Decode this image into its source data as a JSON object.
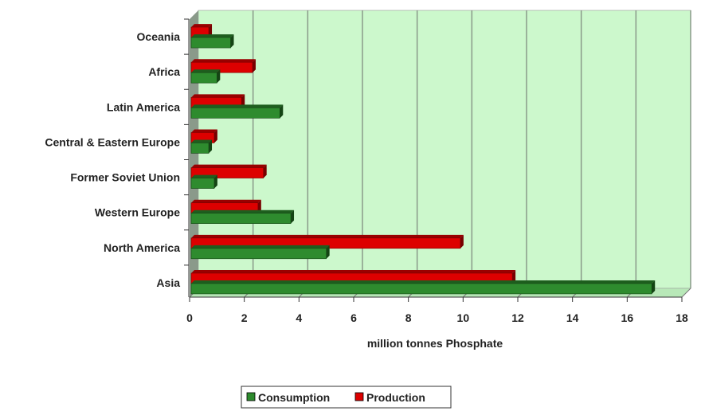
{
  "chart_data": {
    "type": "bar",
    "orientation": "horizontal",
    "title": "",
    "xlabel": "million tonnes Phosphate",
    "ylabel": "",
    "xlim": [
      0,
      18
    ],
    "xticks": [
      0,
      2,
      4,
      6,
      8,
      10,
      12,
      14,
      16,
      18
    ],
    "grid": true,
    "legend_position": "bottom",
    "categories": [
      "Oceania",
      "Africa",
      "Latin America",
      "Central & Eastern Europe",
      "Former Soviet Union",
      "Western Europe",
      "North America",
      "Asia"
    ],
    "series": [
      {
        "name": "Consumption",
        "color": "#2e8b2e",
        "values": [
          1.5,
          1.0,
          3.3,
          0.7,
          0.9,
          3.7,
          5.0,
          16.9
        ]
      },
      {
        "name": "Production",
        "color": "#dd0000",
        "values": [
          0.7,
          2.3,
          1.9,
          0.9,
          2.7,
          2.5,
          9.9,
          11.8
        ]
      }
    ]
  }
}
